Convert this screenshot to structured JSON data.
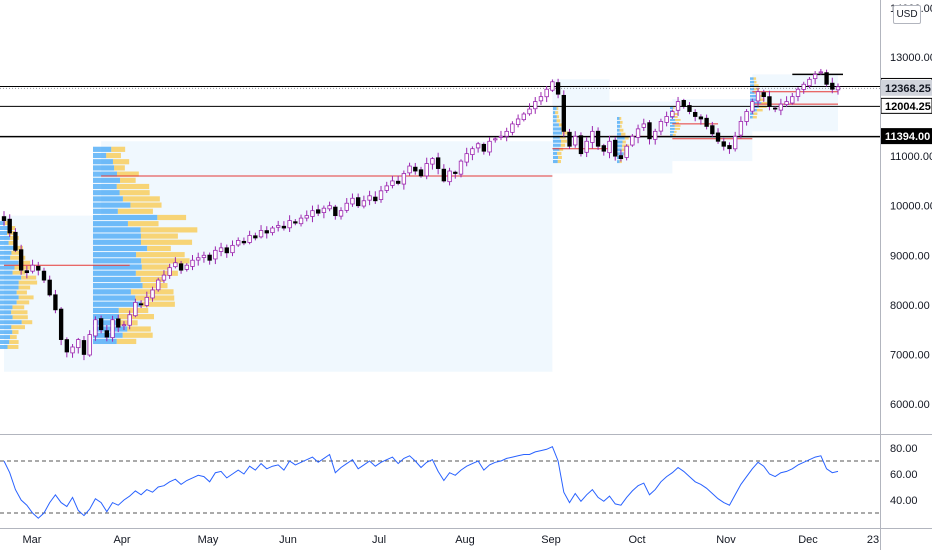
{
  "chart_data": [
    {
      "type": "candlestick",
      "price_axis": {
        "ticks": [
          "13000.00",
          "12000.00",
          "11000.00",
          "10000.00",
          "9000.00",
          "8000.00",
          "7000.00",
          "6000.00"
        ],
        "tick_values": [
          13000,
          12000,
          11000,
          10000,
          9000,
          8000,
          7000,
          6000
        ],
        "top_clipped_label": "14000.00",
        "ylim": [
          5500,
          14000
        ],
        "scale": "linear"
      },
      "time_axis": {
        "ticks": [
          "Mar",
          "Apr",
          "May",
          "Jun",
          "Jul",
          "Aug",
          "Sep",
          "Oct",
          "Nov",
          "Dec",
          "23"
        ]
      },
      "close_series": [
        9700,
        9450,
        9100,
        8700,
        8650,
        8800,
        8700,
        8500,
        8200,
        7900,
        7300,
        7050,
        7150,
        7300,
        7000,
        7400,
        7700,
        7500,
        7350,
        7700,
        7550,
        7600,
        7800,
        8050,
        8000,
        8150,
        8300,
        8500,
        8600,
        8750,
        8850,
        8700,
        8800,
        8900,
        8950,
        9000,
        8900,
        9100,
        9150,
        9050,
        9200,
        9300,
        9250,
        9400,
        9350,
        9500,
        9450,
        9550,
        9600,
        9550,
        9700,
        9650,
        9750,
        9800,
        9900,
        9850,
        9950,
        10000,
        9800,
        9900,
        10050,
        10150,
        10000,
        10100,
        10200,
        10100,
        10300,
        10400,
        10500,
        10450,
        10650,
        10800,
        10700,
        10600,
        10850,
        10950,
        10750,
        10500,
        10700,
        10650,
        10900,
        11050,
        11150,
        11250,
        11100,
        11300,
        11350,
        11400,
        11500,
        11650,
        11750,
        11850,
        11950,
        12100,
        12200,
        12350,
        12500,
        12250,
        11500,
        11200,
        11400,
        11050,
        11300,
        11500,
        11200,
        11100,
        11300,
        11000,
        10950,
        11200,
        11400,
        11550,
        11650,
        11350,
        11500,
        11700,
        11800,
        11900,
        12100,
        12000,
        11900,
        11800,
        11750,
        11600,
        11450,
        11300,
        11200,
        11150,
        11400,
        11700,
        11900,
        12100,
        12300,
        12200,
        12000,
        11950,
        12050,
        12100,
        12200,
        12350,
        12450,
        12550,
        12650,
        12700,
        12450,
        12350,
        12400
      ],
      "price_tags": [
        {
          "value": "12405.75",
          "style": "outlined"
        },
        {
          "value": "12368.25",
          "style": "last-price"
        },
        {
          "value": "12004.25",
          "style": "outlined"
        },
        {
          "value": "11394.00",
          "style": "filled"
        }
      ],
      "horizontal_levels": [
        12405.75,
        12004.25,
        11394.0
      ],
      "volume_profile_poc_lines": [
        8800,
        10600,
        11150,
        11400,
        11350,
        11650,
        12300,
        12050
      ],
      "colors": {
        "candle_up": "#ffffff",
        "candle_down": "#000000",
        "wick": "#9c27b0",
        "profile_up": "#42a5f5",
        "profile_down": "#fbc02d",
        "poc_line": "#e53935",
        "profile_bg": "#e3f2fd"
      }
    },
    {
      "type": "line",
      "indicator": "RSI",
      "ticks": [
        "80.00",
        "60.00",
        "40.00"
      ],
      "tick_values": [
        80,
        60,
        40
      ],
      "ylim": [
        20,
        85
      ],
      "bands": [
        70,
        30
      ],
      "color": "#2962ff",
      "values": [
        70,
        61,
        48,
        40,
        36,
        30,
        26,
        30,
        38,
        44,
        38,
        35,
        42,
        32,
        28,
        33,
        41,
        38,
        31,
        38,
        36,
        40,
        43,
        47,
        44,
        48,
        46,
        50,
        51,
        54,
        56,
        52,
        55,
        57,
        59,
        58,
        54,
        61,
        62,
        57,
        60,
        63,
        60,
        66,
        63,
        68,
        64,
        66,
        67,
        63,
        70,
        67,
        69,
        71,
        73,
        69,
        72,
        75,
        61,
        65,
        68,
        71,
        64,
        67,
        70,
        66,
        69,
        71,
        73,
        68,
        72,
        74,
        70,
        65,
        69,
        71,
        62,
        55,
        61,
        59,
        63,
        66,
        68,
        70,
        63,
        67,
        69,
        70,
        72,
        73,
        74,
        75,
        75,
        77,
        78,
        79,
        81,
        70,
        46,
        38,
        45,
        39,
        44,
        48,
        42,
        39,
        43,
        37,
        36,
        42,
        47,
        51,
        53,
        44,
        48,
        54,
        58,
        61,
        65,
        62,
        58,
        54,
        52,
        49,
        45,
        41,
        38,
        36,
        44,
        52,
        58,
        64,
        69,
        66,
        60,
        58,
        61,
        62,
        64,
        67,
        69,
        71,
        73,
        74,
        64,
        61,
        62
      ]
    }
  ],
  "ui": {
    "currency_label": "USD"
  }
}
